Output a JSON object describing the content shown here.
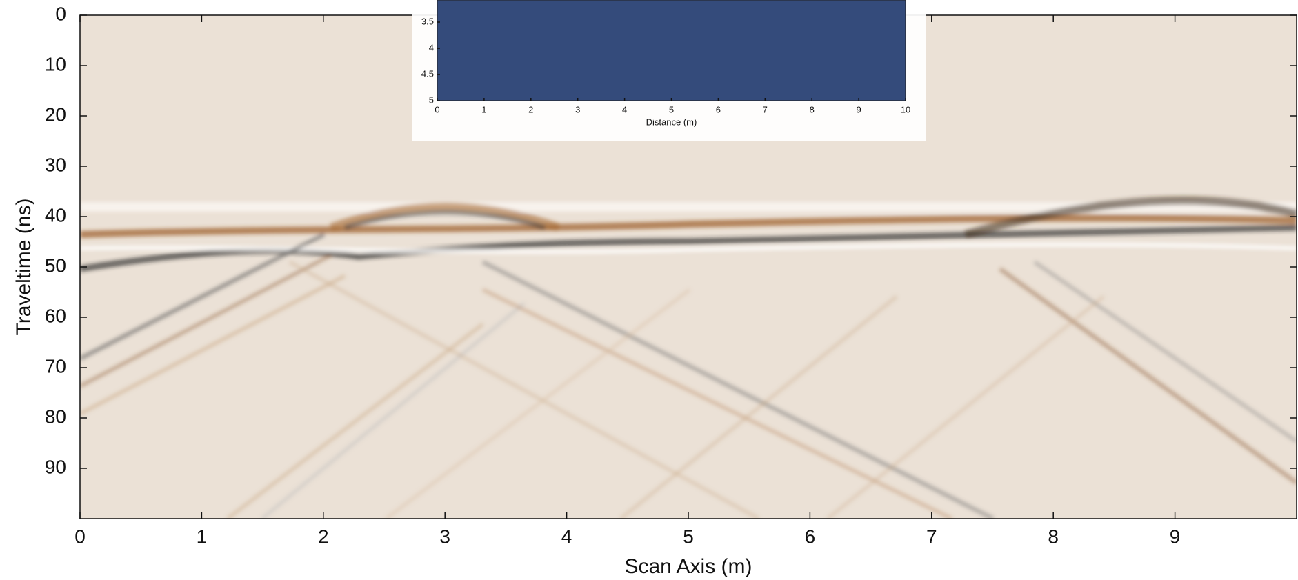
{
  "chart_data": [
    {
      "type": "radargram",
      "xlabel": "Scan Axis (m)",
      "ylabel": "Traveltime (ns)",
      "xlim": [
        0,
        10
      ],
      "xticks": [
        0,
        1,
        2,
        3,
        4,
        5,
        6,
        7,
        8,
        9
      ],
      "ylim": [
        100,
        0
      ],
      "yticks": [
        0,
        10,
        20,
        30,
        40,
        50,
        60,
        70,
        80,
        90
      ],
      "color": "#ebe1d6"
    },
    {
      "type": "fill",
      "xlabel": "Distance (m)",
      "xlim": [
        0,
        10
      ],
      "xticks": [
        0,
        1,
        2,
        3,
        4,
        5,
        6,
        7,
        8,
        9,
        10
      ],
      "ylim": [
        5,
        0
      ],
      "yticks": [
        3.5,
        4,
        4.5,
        5
      ],
      "color": "#344b7b"
    }
  ]
}
